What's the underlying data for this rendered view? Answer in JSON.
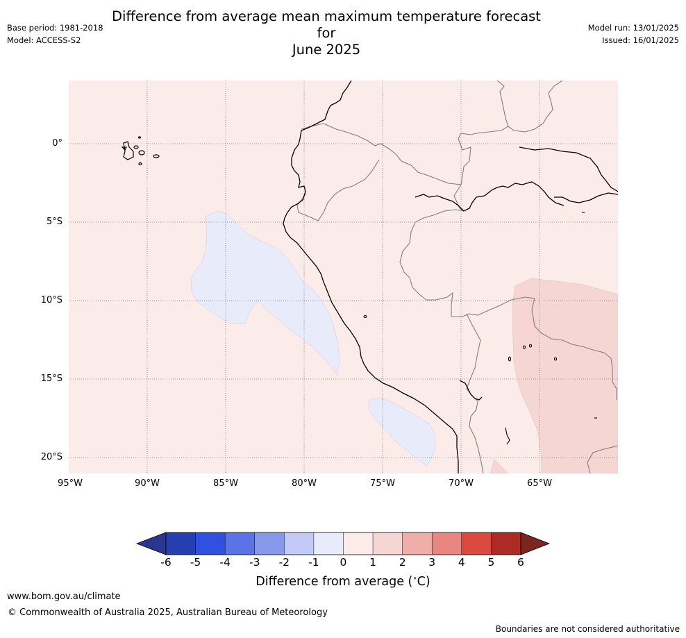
{
  "header": {
    "title_line1": "Difference from average mean maximum temperature forecast for",
    "title_line2": "June 2025",
    "base_period": "Base period: 1981-2018",
    "model": "Model: ACCESS-S2",
    "model_run": "Model run: 13/01/2025",
    "issued": "Issued: 16/01/2025"
  },
  "map": {
    "latitude_labels": [
      "0°",
      "5°S",
      "10°S",
      "15°S",
      "20°S"
    ],
    "longitude_labels": [
      "95°W",
      "90°W",
      "85°W",
      "80°W",
      "75°W",
      "70°W",
      "65°W"
    ],
    "regions": [
      {
        "name": "background",
        "category": "0 to 1",
        "color": "#fbebe9"
      },
      {
        "name": "offshore-anomaly",
        "category": "-1 to 0",
        "color": "#e8ebfa"
      },
      {
        "name": "inland-anomaly",
        "category": "1 to 2",
        "color": "#f5d6d3"
      }
    ]
  },
  "colorbar": {
    "ticks": [
      "-6",
      "-5",
      "-4",
      "-3",
      "-2",
      "-1",
      "0",
      "1",
      "2",
      "3",
      "4",
      "5",
      "6"
    ],
    "colors": [
      "#2a3590",
      "#263fb0",
      "#3050e0",
      "#5a73e5",
      "#8798ea",
      "#c3caf5",
      "#e8ebfa",
      "#fbebe9",
      "#f5d6d3",
      "#efafa9",
      "#e8877f",
      "#da4a3e",
      "#ad2b24",
      "#7a2520"
    ],
    "title": "Difference from average (",
    "title_unit": "C)"
  },
  "footer": {
    "url": "www.bom.gov.au/climate",
    "copyright": "© Commonwealth of Australia 2025, Australian Bureau of Meteorology",
    "disclaimer": "Boundaries are not considered authoritative"
  }
}
